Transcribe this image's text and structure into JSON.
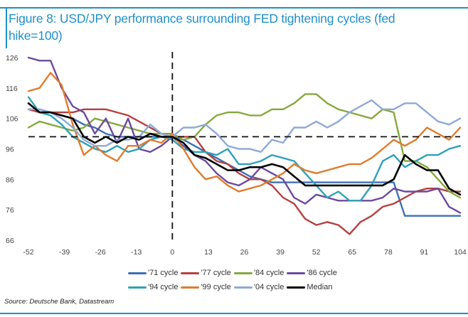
{
  "title": "Figure 8: USD/JPY performance surrounding FED tightening cycles (fed hike=100)",
  "source": "Source: Deutsche Bank, Datastream",
  "colors": {
    "accent": "#1e90c9"
  },
  "chart_data": {
    "type": "line",
    "title": "Figure 8: USD/JPY performance surrounding FED tightening cycles (fed hike=100)",
    "xlabel": "",
    "ylabel": "",
    "xlim": [
      -52,
      104
    ],
    "ylim": [
      66,
      126
    ],
    "xticks": [
      -52,
      -39,
      -26,
      -13,
      0,
      13,
      26,
      39,
      52,
      65,
      78,
      91,
      104
    ],
    "yticks": [
      126,
      116,
      106,
      96,
      86,
      76,
      66
    ],
    "reference_lines": {
      "horizontal": 100,
      "vertical": 0
    },
    "grid": false,
    "legend_position": "bottom",
    "x": [
      -52,
      -48,
      -44,
      -40,
      -36,
      -32,
      -28,
      -24,
      -20,
      -16,
      -12,
      -8,
      -4,
      0,
      4,
      8,
      12,
      16,
      20,
      24,
      28,
      32,
      36,
      40,
      44,
      48,
      52,
      56,
      60,
      64,
      68,
      72,
      76,
      80,
      84,
      88,
      92,
      96,
      100,
      104
    ],
    "series": [
      {
        "name": "'71 cycle",
        "color": "#3d6fb5",
        "values": [
          109,
          109,
          108,
          107,
          106,
          104,
          103,
          101,
          100,
          100,
          100,
          100,
          100,
          100,
          99,
          97,
          95,
          93,
          91,
          89,
          87,
          86,
          85,
          85,
          85,
          85,
          85,
          85,
          85,
          85,
          85,
          85,
          85,
          85,
          74,
          74,
          74,
          74,
          74,
          74
        ]
      },
      {
        "name": "'77 cycle",
        "color": "#b5403f",
        "values": [
          109,
          108,
          108,
          108,
          108,
          109,
          109,
          109,
          108,
          107,
          105,
          103,
          101,
          100,
          100,
          100,
          95,
          92,
          91,
          88,
          86,
          86,
          84,
          80,
          78,
          73,
          71,
          72,
          71,
          68,
          72,
          74,
          77,
          78,
          80,
          82,
          83,
          83,
          82,
          82
        ]
      },
      {
        "name": "'84 cycle",
        "color": "#86a83e",
        "values": [
          103,
          105,
          104,
          103,
          102,
          103,
          106,
          105,
          104,
          103,
          102,
          101,
          101,
          101,
          99,
          100,
          104,
          107,
          108,
          108,
          107,
          107,
          109,
          109,
          111,
          114,
          114,
          111,
          109,
          108,
          107,
          106,
          109,
          108,
          92,
          92,
          90,
          86,
          82,
          80
        ]
      },
      {
        "name": "'86 cycle",
        "color": "#6c4a9e",
        "values": [
          126,
          125,
          125,
          116,
          110,
          108,
          101,
          106,
          98,
          106,
          96,
          95,
          97,
          100,
          97,
          94,
          92,
          88,
          85,
          84,
          86,
          90,
          88,
          86,
          80,
          78,
          81,
          80,
          79,
          79,
          79,
          79,
          80,
          83,
          82,
          82,
          82,
          83,
          77,
          75
        ]
      },
      {
        "name": "'94 cycle",
        "color": "#2ea1b8",
        "values": [
          113,
          108,
          107,
          104,
          100,
          98,
          96,
          95,
          97,
          95,
          96,
          99,
          100,
          99,
          96,
          95,
          95,
          94,
          96,
          91,
          91,
          92,
          94,
          93,
          92,
          88,
          84,
          80,
          82,
          79,
          79,
          84,
          92,
          94,
          90,
          92,
          94,
          94,
          96,
          97
        ]
      },
      {
        "name": "'99 cycle",
        "color": "#e07b2c",
        "values": [
          115,
          116,
          121,
          117,
          104,
          94,
          97,
          94,
          92,
          97,
          97,
          99,
          98,
          101,
          96,
          90,
          86,
          87,
          84,
          82,
          83,
          84,
          86,
          88,
          91,
          89,
          88,
          89,
          90,
          91,
          91,
          93,
          96,
          99,
          97,
          99,
          103,
          101,
          99,
          103
        ]
      },
      {
        "name": "'04 cycle",
        "color": "#8ea9d8",
        "values": [
          109,
          109,
          108,
          106,
          103,
          99,
          97,
          97,
          99,
          99,
          100,
          104,
          101,
          100,
          103,
          103,
          104,
          101,
          97,
          96,
          96,
          95,
          99,
          98,
          103,
          103,
          105,
          103,
          105,
          108,
          110,
          112,
          109,
          109,
          111,
          111,
          108,
          105,
          104,
          106
        ]
      },
      {
        "name": "Median",
        "color": "#000000",
        "values": [
          111,
          108,
          108,
          107,
          106,
          100,
          98,
          100,
          98,
          100,
          99,
          101,
          100,
          100,
          98,
          94,
          93,
          91,
          89,
          89,
          90,
          90,
          91,
          90,
          87,
          84,
          84,
          84,
          84,
          84,
          84,
          84,
          84,
          86,
          94,
          91,
          89,
          89,
          83,
          81
        ]
      }
    ]
  }
}
